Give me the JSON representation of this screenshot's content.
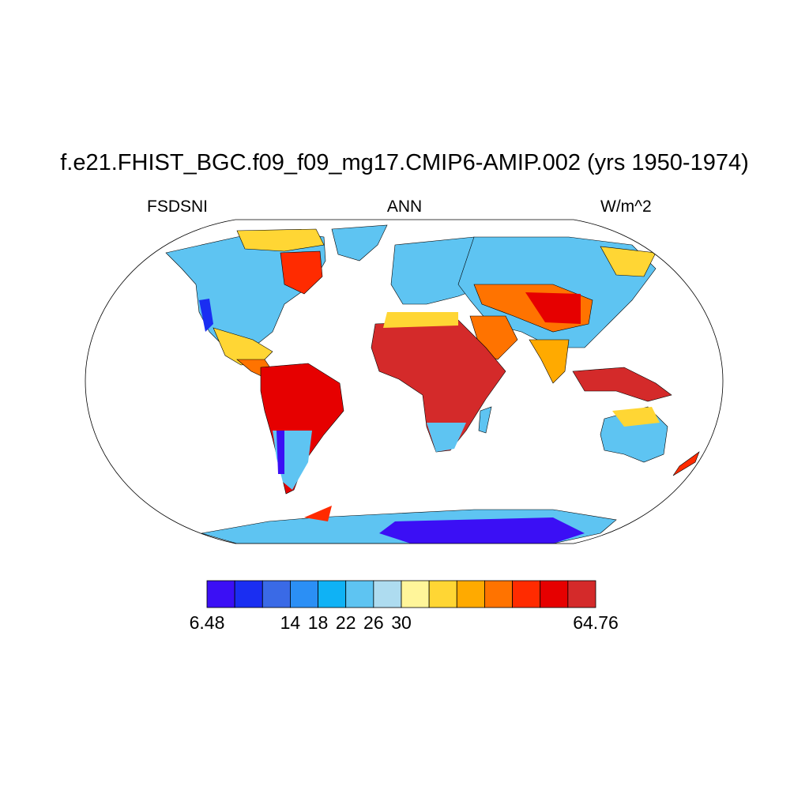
{
  "title": "f.e21.FHIST_BGC.f09_f09_mg17.CMIP6-AMIP.002 (yrs 1950-1974)",
  "subtitle_left": "FSDSNI",
  "subtitle_center": "ANN",
  "subtitle_right": "W/m^2",
  "colorbar": {
    "colors": [
      "#3b0ff5",
      "#1a2ef2",
      "#3a6ae6",
      "#2b8ff5",
      "#0fb2f5",
      "#5ec4f2",
      "#aedcf0",
      "#fff59a",
      "#ffd634",
      "#ffaa00",
      "#ff7300",
      "#ff2b00",
      "#e60000",
      "#d42a2a"
    ],
    "labels": [
      "6.48",
      "14",
      "18",
      "22",
      "26",
      "30",
      "64.76"
    ],
    "label_edges": [
      0,
      3,
      4,
      5,
      6,
      7,
      14
    ]
  },
  "legend_colors": {
    "land_low": "#5ec4f2",
    "land_high": "#d42a2a"
  }
}
